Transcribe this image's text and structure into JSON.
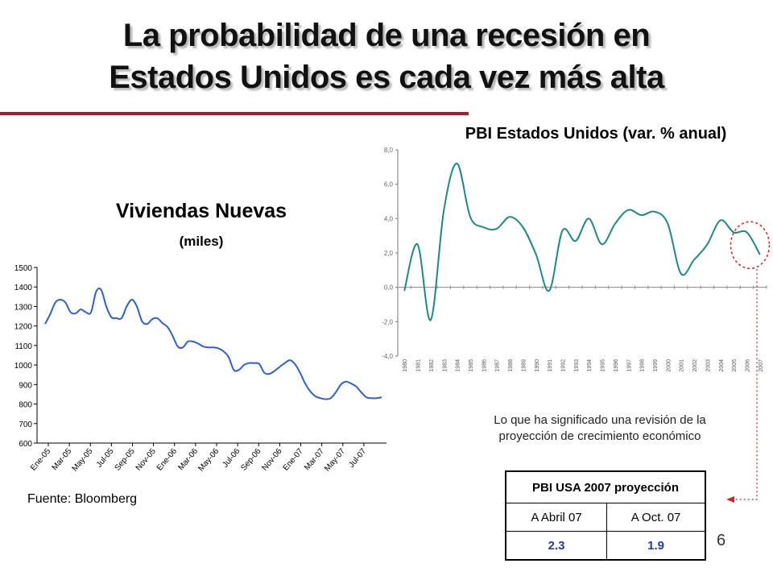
{
  "slide": {
    "title_line1": "La probabilidad de una recesión en",
    "title_line2": "Estados Unidos es cada vez más alta",
    "page_number": "6",
    "source": "Fuente: Bloomberg",
    "note": "Lo que ha significado una  revisión de la proyección de crecimiento económico",
    "accent_color": "#b0182e"
  },
  "table": {
    "header": "PBI USA 2007 proyección",
    "col1_label": "A Abril 07",
    "col2_label": "A Oct. 07",
    "col1_value": "2.3",
    "col2_value": "1.9",
    "value_color": "#2b3a8f"
  },
  "chart_data": [
    {
      "type": "line",
      "title": "Viviendas Nuevas",
      "subtitle": "(miles)",
      "ylim": [
        600,
        1500
      ],
      "yticks": [
        "600",
        "700",
        "800",
        "900",
        "1000",
        "1100",
        "1200",
        "1300",
        "1400",
        "1500"
      ],
      "x_tick_labels": [
        "Ene-05",
        "Mar-05",
        "May-05",
        "Jul-05",
        "Sep-05",
        "Nov-05",
        "Ene-06",
        "Mar-06",
        "May-06",
        "Jul-06",
        "Sep-06",
        "Nov-06",
        "Ene-07",
        "Mar-07",
        "May-07",
        "Jul-07"
      ],
      "color": "#2f5fd0",
      "series": [
        {
          "values": [
            1210,
            1260,
            1320,
            1335,
            1320,
            1270,
            1265,
            1285,
            1270,
            1270,
            1375,
            1385,
            1300,
            1245,
            1240,
            1240,
            1300,
            1335,
            1300,
            1225,
            1210,
            1235,
            1240,
            1215,
            1195,
            1150,
            1095,
            1090,
            1120,
            1120,
            1110,
            1095,
            1090,
            1090,
            1085,
            1070,
            1040,
            975,
            975,
            1000,
            1010,
            1010,
            1005,
            960,
            955,
            970,
            990,
            1010,
            1025,
            1005,
            960,
            905,
            865,
            840,
            830,
            825,
            830,
            860,
            900,
            915,
            905,
            890,
            860,
            835,
            830,
            830,
            835
          ]
        }
      ]
    },
    {
      "type": "line",
      "title": "PBI Estados Unidos (var. % anual)",
      "ylim": [
        -4,
        8
      ],
      "yticks": [
        "-4,0",
        "-2,0",
        "0,0",
        "2,0",
        "4,0",
        "6,0",
        "8,0"
      ],
      "x": [
        "1980",
        "1981",
        "1982",
        "1983",
        "1984",
        "1985",
        "1986",
        "1987",
        "1988",
        "1989",
        "1990",
        "1991",
        "1992",
        "1993",
        "1994",
        "1995",
        "1996",
        "1997",
        "1998",
        "1999",
        "2000",
        "2001",
        "2002",
        "2003",
        "2004",
        "2005",
        "2006",
        "2007"
      ],
      "color": "#1f8a80",
      "series": [
        {
          "values": [
            -0.2,
            2.5,
            -1.9,
            4.5,
            7.2,
            4.1,
            3.5,
            3.4,
            4.1,
            3.5,
            1.9,
            -0.2,
            3.3,
            2.7,
            4.0,
            2.5,
            3.7,
            4.5,
            4.2,
            4.4,
            3.7,
            0.8,
            1.6,
            2.5,
            3.9,
            3.2,
            3.2,
            1.9
          ]
        }
      ]
    }
  ]
}
